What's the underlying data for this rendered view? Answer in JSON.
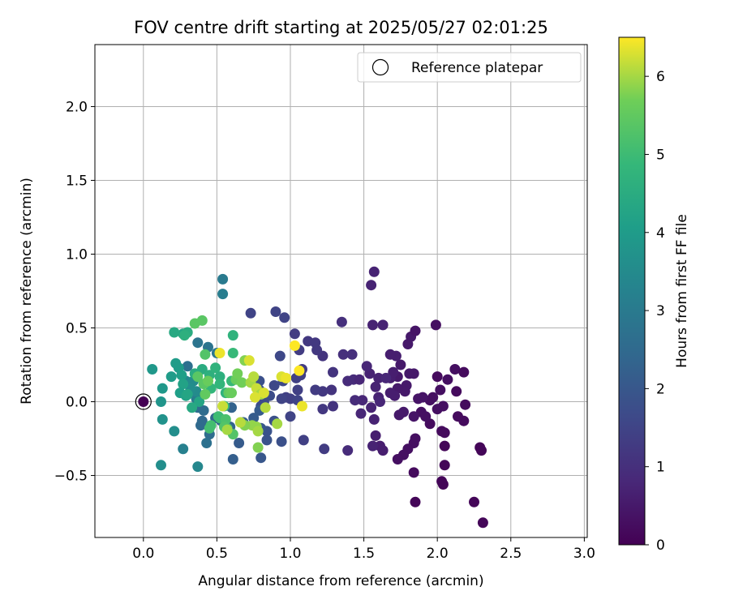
{
  "chart_data": {
    "type": "scatter",
    "title": "FOV centre drift starting at 2025/05/27 02:01:25",
    "xlabel": "Angular distance from reference (arcmin)",
    "ylabel": "Rotation from reference (arcmin)",
    "xlim": [
      -0.33,
      3.02
    ],
    "ylim": [
      -0.92,
      2.42
    ],
    "xticks": [
      0.0,
      0.5,
      1.0,
      1.5,
      2.0,
      2.5,
      3.0
    ],
    "xtick_labels": [
      "0.0",
      "0.5",
      "1.0",
      "1.5",
      "2.0",
      "2.5",
      "3.0"
    ],
    "yticks": [
      -0.5,
      0.0,
      0.5,
      1.0,
      1.5,
      2.0
    ],
    "ytick_labels": [
      "−0.5",
      "0.0",
      "0.5",
      "1.0",
      "1.5",
      "2.0"
    ],
    "grid": true,
    "legend": {
      "position": "top-right",
      "entries": [
        "Reference platepar"
      ]
    },
    "colorbar": {
      "label": "Hours from first FF file",
      "colormap": "viridis",
      "range": [
        0,
        6.5
      ],
      "ticks": [
        0,
        1,
        2,
        3,
        4,
        5,
        6
      ],
      "tick_labels": [
        "0",
        "1",
        "2",
        "3",
        "4",
        "5",
        "6"
      ]
    },
    "reference_point": {
      "name": "Reference platepar",
      "x": 0.0,
      "y": 0.0
    },
    "points": [
      [
        2.31,
        -0.82,
        0.1
      ],
      [
        2.25,
        -0.68,
        0.1
      ],
      [
        2.29,
        -0.31,
        0.1
      ],
      [
        2.3,
        -0.33,
        0.1
      ],
      [
        2.03,
        -0.54,
        0.1
      ],
      [
        2.04,
        -0.56,
        0.1
      ],
      [
        1.85,
        -0.68,
        0.1
      ],
      [
        1.84,
        -0.48,
        0.2
      ],
      [
        2.05,
        -0.43,
        0.1
      ],
      [
        2.05,
        -0.3,
        0.1
      ],
      [
        2.03,
        -0.2,
        0.2
      ],
      [
        2.05,
        -0.21,
        0.2
      ],
      [
        2.18,
        -0.13,
        0.2
      ],
      [
        2.14,
        -0.1,
        0.2
      ],
      [
        2.19,
        -0.02,
        0.2
      ],
      [
        2.13,
        0.07,
        0.2
      ],
      [
        2.12,
        0.22,
        0.3
      ],
      [
        2.18,
        0.2,
        0.2
      ],
      [
        2.07,
        0.15,
        0.3
      ],
      [
        2.02,
        0.08,
        0.3
      ],
      [
        2.0,
        0.17,
        0.2
      ],
      [
        1.99,
        0.52,
        0.3
      ],
      [
        1.95,
        -0.15,
        0.2
      ],
      [
        1.89,
        -0.07,
        0.3
      ],
      [
        1.92,
        -0.1,
        0.3
      ],
      [
        1.97,
        0.03,
        0.3
      ],
      [
        1.95,
        0.01,
        0.3
      ],
      [
        2.0,
        -0.05,
        0.3
      ],
      [
        2.04,
        -0.03,
        0.3
      ],
      [
        1.84,
        -0.28,
        0.3
      ],
      [
        1.85,
        -0.25,
        0.3
      ],
      [
        1.8,
        -0.32,
        0.3
      ],
      [
        1.77,
        -0.36,
        0.3
      ],
      [
        1.73,
        -0.39,
        0.3
      ],
      [
        1.84,
        -0.1,
        0.4
      ],
      [
        1.87,
        0.02,
        0.4
      ],
      [
        1.9,
        0.03,
        0.4
      ],
      [
        1.8,
        0.39,
        0.5
      ],
      [
        1.82,
        0.44,
        0.5
      ],
      [
        1.85,
        0.48,
        0.4
      ],
      [
        1.84,
        0.19,
        0.5
      ],
      [
        1.81,
        0.19,
        0.5
      ],
      [
        1.75,
        0.25,
        0.5
      ],
      [
        1.73,
        0.17,
        0.5
      ],
      [
        1.79,
        0.11,
        0.5
      ],
      [
        1.78,
        0.07,
        0.5
      ],
      [
        1.73,
        0.09,
        0.5
      ],
      [
        1.77,
        -0.07,
        0.5
      ],
      [
        1.74,
        -0.09,
        0.5
      ],
      [
        1.71,
        0.04,
        0.6
      ],
      [
        1.68,
        0.06,
        0.6
      ],
      [
        1.68,
        0.16,
        0.6
      ],
      [
        1.72,
        0.31,
        0.6
      ],
      [
        1.68,
        0.32,
        0.6
      ],
      [
        1.7,
        0.2,
        0.6
      ],
      [
        1.63,
        -0.33,
        0.6
      ],
      [
        1.61,
        -0.3,
        0.6
      ],
      [
        1.58,
        -0.23,
        0.6
      ],
      [
        1.56,
        -0.3,
        0.7
      ],
      [
        1.57,
        -0.12,
        0.7
      ],
      [
        1.55,
        -0.04,
        0.7
      ],
      [
        1.6,
        0.03,
        0.7
      ],
      [
        1.58,
        0.1,
        0.7
      ],
      [
        1.6,
        0.16,
        0.7
      ],
      [
        1.54,
        0.19,
        0.7
      ],
      [
        1.52,
        0.24,
        0.8
      ],
      [
        1.56,
        0.52,
        0.7
      ],
      [
        1.63,
        0.52,
        0.7
      ],
      [
        1.55,
        0.79,
        0.7
      ],
      [
        1.57,
        0.88,
        0.7
      ],
      [
        1.65,
        0.16,
        0.8
      ],
      [
        1.61,
        0.0,
        0.8
      ],
      [
        1.48,
        -0.08,
        0.8
      ],
      [
        1.49,
        0.01,
        0.8
      ],
      [
        1.43,
        0.15,
        0.9
      ],
      [
        1.47,
        0.15,
        0.8
      ],
      [
        1.44,
        0.01,
        0.9
      ],
      [
        1.39,
        0.14,
        0.9
      ],
      [
        1.39,
        -0.33,
        0.9
      ],
      [
        1.35,
        0.54,
        1.0
      ],
      [
        1.36,
        0.32,
        1.0
      ],
      [
        1.42,
        0.32,
        1.0
      ],
      [
        1.29,
        0.2,
        1.1
      ],
      [
        1.28,
        0.08,
        1.1
      ],
      [
        1.29,
        -0.03,
        1.1
      ],
      [
        1.22,
        0.31,
        1.1
      ],
      [
        1.17,
        0.4,
        1.2
      ],
      [
        1.12,
        0.41,
        1.2
      ],
      [
        1.22,
        0.07,
        1.2
      ],
      [
        1.22,
        -0.05,
        1.2
      ],
      [
        1.17,
        0.08,
        1.3
      ],
      [
        1.18,
        0.35,
        1.2
      ],
      [
        1.08,
        0.22,
        1.3
      ],
      [
        1.03,
        0.46,
        1.3
      ],
      [
        1.06,
        0.35,
        1.3
      ],
      [
        1.04,
        0.16,
        1.4
      ],
      [
        1.05,
        0.08,
        1.4
      ],
      [
        1.0,
        0.02,
        1.4
      ],
      [
        0.97,
        0.03,
        1.4
      ],
      [
        0.94,
        0.02,
        1.5
      ],
      [
        1.09,
        -0.26,
        1.4
      ],
      [
        1.23,
        -0.32,
        1.3
      ],
      [
        1.05,
        0.01,
        1.5
      ],
      [
        1.07,
        0.18,
        1.4
      ],
      [
        1.0,
        -0.1,
        1.5
      ],
      [
        0.96,
        0.57,
        1.5
      ],
      [
        0.9,
        0.61,
        1.5
      ],
      [
        0.73,
        0.6,
        1.5
      ],
      [
        0.93,
        0.31,
        1.6
      ],
      [
        0.95,
        0.14,
        1.6
      ],
      [
        0.89,
        0.11,
        1.6
      ],
      [
        0.86,
        0.04,
        1.7
      ],
      [
        0.82,
        0.0,
        1.7
      ],
      [
        0.8,
        -0.03,
        1.7
      ],
      [
        0.79,
        0.08,
        1.8
      ],
      [
        0.79,
        0.14,
        1.8
      ],
      [
        0.89,
        -0.13,
        1.8
      ],
      [
        0.94,
        -0.27,
        1.8
      ],
      [
        0.84,
        -0.26,
        1.9
      ],
      [
        0.84,
        -0.2,
        1.9
      ],
      [
        0.8,
        -0.38,
        2.0
      ],
      [
        0.8,
        -0.18,
        2.0
      ],
      [
        0.75,
        -0.11,
        2.1
      ],
      [
        0.79,
        -0.06,
        2.1
      ],
      [
        0.65,
        -0.28,
        2.1
      ],
      [
        0.61,
        -0.39,
        2.2
      ],
      [
        0.68,
        -0.14,
        2.2
      ],
      [
        0.6,
        -0.04,
        2.3
      ],
      [
        0.59,
        -0.17,
        2.3
      ],
      [
        0.53,
        -0.13,
        2.4
      ],
      [
        0.49,
        -0.11,
        2.4
      ],
      [
        0.39,
        -0.16,
        2.5
      ],
      [
        0.4,
        -0.13,
        2.5
      ],
      [
        0.37,
        -0.04,
        2.6
      ],
      [
        0.41,
        -0.06,
        2.6
      ],
      [
        0.45,
        -0.22,
        2.6
      ],
      [
        0.43,
        -0.28,
        2.7
      ],
      [
        0.3,
        0.24,
        2.7
      ],
      [
        0.37,
        0.4,
        2.8
      ],
      [
        0.44,
        0.37,
        2.8
      ],
      [
        0.5,
        0.33,
        2.9
      ],
      [
        0.54,
        0.83,
        3.0
      ],
      [
        0.54,
        0.73,
        3.1
      ],
      [
        0.36,
        0.02,
        3.1
      ],
      [
        0.27,
        -0.32,
        3.2
      ],
      [
        0.37,
        -0.44,
        3.4
      ],
      [
        0.29,
        0.14,
        3.4
      ],
      [
        0.34,
        0.14,
        3.5
      ],
      [
        0.36,
        0.07,
        3.5
      ],
      [
        0.32,
        0.09,
        3.6
      ],
      [
        0.21,
        -0.2,
        3.6
      ],
      [
        0.12,
        -0.43,
        3.6
      ],
      [
        0.13,
        -0.12,
        3.7
      ],
      [
        0.12,
        0.0,
        3.8
      ],
      [
        0.13,
        0.09,
        3.9
      ],
      [
        0.06,
        0.22,
        3.9
      ],
      [
        0.19,
        0.17,
        4.0
      ],
      [
        0.22,
        0.26,
        4.0
      ],
      [
        0.24,
        0.23,
        4.0
      ],
      [
        0.26,
        0.18,
        4.1
      ],
      [
        0.27,
        0.12,
        4.2
      ],
      [
        0.25,
        0.06,
        4.1
      ],
      [
        0.29,
        0.04,
        4.2
      ],
      [
        0.3,
        0.05,
        4.3
      ],
      [
        0.38,
        0.0,
        4.3
      ],
      [
        0.33,
        -0.04,
        4.4
      ],
      [
        0.27,
        0.46,
        4.3
      ],
      [
        0.21,
        0.47,
        4.4
      ],
      [
        0.3,
        0.47,
        4.5
      ],
      [
        0.28,
        0.45,
        4.6
      ],
      [
        0.35,
        0.19,
        4.5
      ],
      [
        0.4,
        0.22,
        4.5
      ],
      [
        0.45,
        0.18,
        4.6
      ],
      [
        0.49,
        0.23,
        4.7
      ],
      [
        0.52,
        0.17,
        4.6
      ],
      [
        0.52,
        0.12,
        4.8
      ],
      [
        0.46,
        0.09,
        4.8
      ],
      [
        0.56,
        0.06,
        4.7
      ],
      [
        0.6,
        0.14,
        4.9
      ],
      [
        0.61,
        0.45,
        4.7
      ],
      [
        0.61,
        0.33,
        4.9
      ],
      [
        0.55,
        -0.03,
        4.9
      ],
      [
        0.51,
        -0.1,
        5.0
      ],
      [
        0.52,
        -0.11,
        5.0
      ],
      [
        0.45,
        -0.18,
        5.1
      ],
      [
        0.46,
        -0.16,
        5.1
      ],
      [
        0.56,
        -0.12,
        5.2
      ],
      [
        0.57,
        -0.18,
        5.2
      ],
      [
        0.61,
        -0.22,
        5.3
      ],
      [
        0.55,
        -0.17,
        5.3
      ],
      [
        0.42,
        0.32,
        5.3
      ],
      [
        0.41,
        0.12,
        5.4
      ],
      [
        0.4,
        0.55,
        5.4
      ],
      [
        0.35,
        0.53,
        5.4
      ],
      [
        0.37,
        0.17,
        5.4
      ],
      [
        0.42,
        0.05,
        5.5
      ],
      [
        0.44,
        0.14,
        5.6
      ],
      [
        0.58,
        0.06,
        5.5
      ],
      [
        0.6,
        0.06,
        5.6
      ],
      [
        0.63,
        0.15,
        5.6
      ],
      [
        0.64,
        0.19,
        5.7
      ],
      [
        0.67,
        0.13,
        5.7
      ],
      [
        0.69,
        0.28,
        5.8
      ],
      [
        0.72,
        0.28,
        6.3
      ],
      [
        0.73,
        0.13,
        6.0
      ],
      [
        0.75,
        0.17,
        6.1
      ],
      [
        0.77,
        0.09,
        6.2
      ],
      [
        0.8,
        0.05,
        6.0
      ],
      [
        0.76,
        0.03,
        6.3
      ],
      [
        0.82,
        0.06,
        6.3
      ],
      [
        0.83,
        -0.04,
        6.1
      ],
      [
        0.77,
        -0.17,
        5.9
      ],
      [
        0.74,
        -0.16,
        5.9
      ],
      [
        0.78,
        -0.2,
        6.0
      ],
      [
        0.78,
        -0.31,
        5.8
      ],
      [
        0.69,
        -0.16,
        5.8
      ],
      [
        0.66,
        -0.14,
        6.1
      ],
      [
        0.57,
        -0.19,
        6.0
      ],
      [
        0.54,
        -0.03,
        6.2
      ],
      [
        0.52,
        0.33,
        6.4
      ],
      [
        0.91,
        -0.15,
        6.0
      ],
      [
        0.94,
        0.17,
        6.3
      ],
      [
        0.97,
        0.16,
        6.4
      ],
      [
        1.03,
        0.38,
        6.5
      ],
      [
        1.06,
        0.21,
        6.5
      ],
      [
        1.08,
        -0.03,
        6.4
      ]
    ]
  }
}
